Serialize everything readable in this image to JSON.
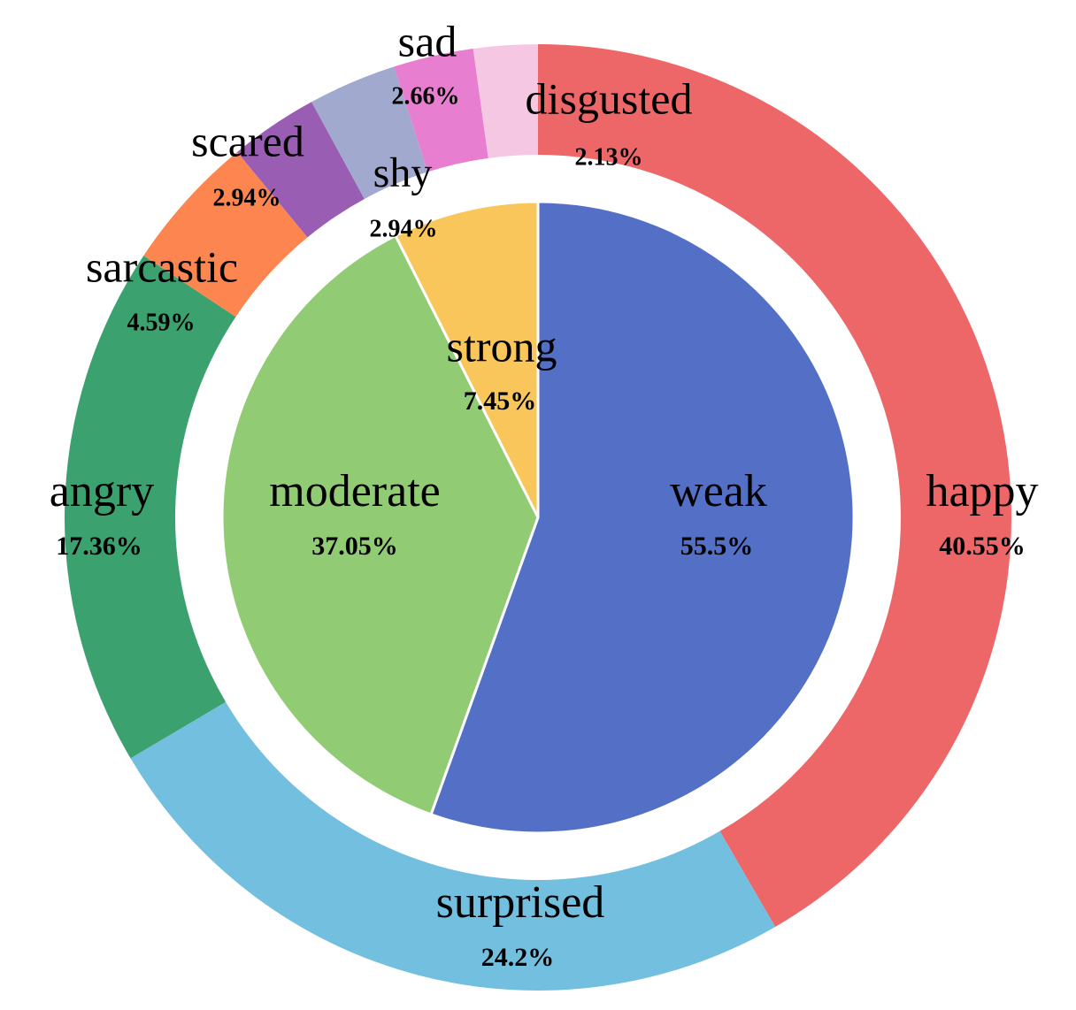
{
  "chart_data": [
    {
      "type": "pie",
      "ring": "outer",
      "slices": [
        {
          "label": "happy",
          "value": 40.55,
          "value_label": "40.55%",
          "color": "#ee6768"
        },
        {
          "label": "surprised",
          "value": 24.2,
          "value_label": "24.2%",
          "color": "#73bfdf"
        },
        {
          "label": "angry",
          "value": 17.36,
          "value_label": "17.36%",
          "color": "#3ba16e"
        },
        {
          "label": "sarcastic",
          "value": 4.59,
          "value_label": "4.59%",
          "color": "#fc8550"
        },
        {
          "label": "scared",
          "value": 2.94,
          "value_label": "2.94%",
          "color": "#9a5db4"
        },
        {
          "label": "shy",
          "value": 2.94,
          "value_label": "2.94%",
          "color": "#a2a9cf"
        },
        {
          "label": "sad",
          "value": 2.66,
          "value_label": "2.66%",
          "color": "#e87ecf"
        },
        {
          "label": "disgusted",
          "value": 2.13,
          "value_label": "2.13%",
          "color": "#f6c7e2"
        }
      ]
    },
    {
      "type": "pie",
      "ring": "inner",
      "slices": [
        {
          "label": "weak",
          "value": 55.5,
          "value_label": "55.5%",
          "color": "#5470c6"
        },
        {
          "label": "moderate",
          "value": 37.05,
          "value_label": "37.05%",
          "color": "#91cb74"
        },
        {
          "label": "strong",
          "value": 7.45,
          "value_label": "7.45%",
          "color": "#f9c65b"
        }
      ]
    }
  ]
}
